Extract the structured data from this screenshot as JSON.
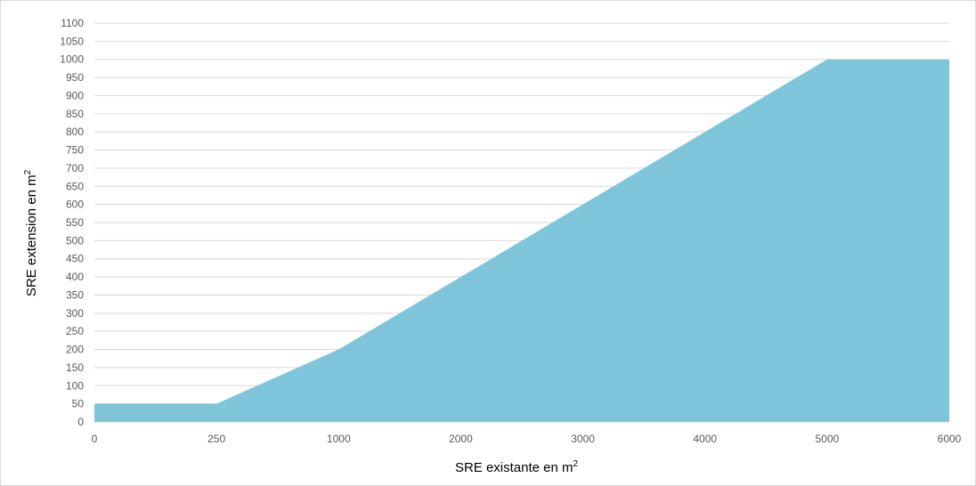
{
  "chart_data": {
    "type": "area",
    "x_categories": [
      "0",
      "250",
      "1000",
      "2000",
      "3000",
      "4000",
      "5000",
      "6000"
    ],
    "series": [
      {
        "values": [
          50,
          50,
          200,
          400,
          600,
          800,
          1000,
          1000
        ]
      }
    ],
    "xlabel": "SRE existante en m",
    "xlabel_sup": "2",
    "ylabel": "SRE extension en m",
    "ylabel_sup": "2",
    "ylim": [
      0,
      1100
    ],
    "ytick_step": 50,
    "grid": true,
    "colors": {
      "area": "#7fc5da",
      "grid": "#d9d9d9",
      "tick_text": "#595959"
    }
  }
}
